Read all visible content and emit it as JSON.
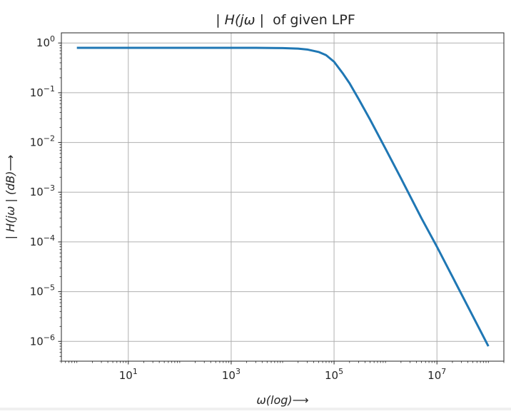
{
  "chart_data": {
    "type": "line",
    "title_prefix": "| ",
    "title_var": "H(jω",
    "title_suffix": " |  of given LPF",
    "xlabel_main": "ω(log)",
    "xlabel_arrow": "⟶",
    "ylabel_main": "| H(jω | (dB)",
    "ylabel_arrow": "⟶",
    "x_scale": "log",
    "y_scale": "log",
    "xlim": [
      0.5,
      200000000
    ],
    "ylim": [
      4e-07,
      1.6
    ],
    "grid": true,
    "x_ticks": [
      {
        "value": 10,
        "base": "10",
        "exp": "1"
      },
      {
        "value": 1000,
        "base": "10",
        "exp": "3"
      },
      {
        "value": 100000,
        "base": "10",
        "exp": "5"
      },
      {
        "value": 10000000,
        "base": "10",
        "exp": "7"
      }
    ],
    "y_ticks": [
      {
        "value": 1,
        "base": "10",
        "exp": "0"
      },
      {
        "value": 0.1,
        "base": "10",
        "exp": "−1"
      },
      {
        "value": 0.01,
        "base": "10",
        "exp": "−2"
      },
      {
        "value": 0.001,
        "base": "10",
        "exp": "−3"
      },
      {
        "value": 0.0001,
        "base": "10",
        "exp": "−4"
      },
      {
        "value": 1e-05,
        "base": "10",
        "exp": "−5"
      },
      {
        "value": 1e-06,
        "base": "10",
        "exp": "−6"
      }
    ],
    "series": [
      {
        "color": "#1f77b4",
        "x": [
          1,
          10,
          100,
          1000,
          3000,
          10000,
          20000,
          30000,
          50000,
          70000,
          100000,
          150000,
          200000,
          300000,
          500000,
          1000000,
          2000000,
          5000000,
          10000000,
          20000000,
          50000000,
          100000000
        ],
        "y": [
          0.8,
          0.8,
          0.8,
          0.8,
          0.799,
          0.79,
          0.77,
          0.74,
          0.66,
          0.57,
          0.42,
          0.24,
          0.155,
          0.075,
          0.029,
          0.0075,
          0.0019,
          0.0003,
          8e-05,
          2e-05,
          3.2e-06,
          8e-07
        ]
      }
    ]
  }
}
